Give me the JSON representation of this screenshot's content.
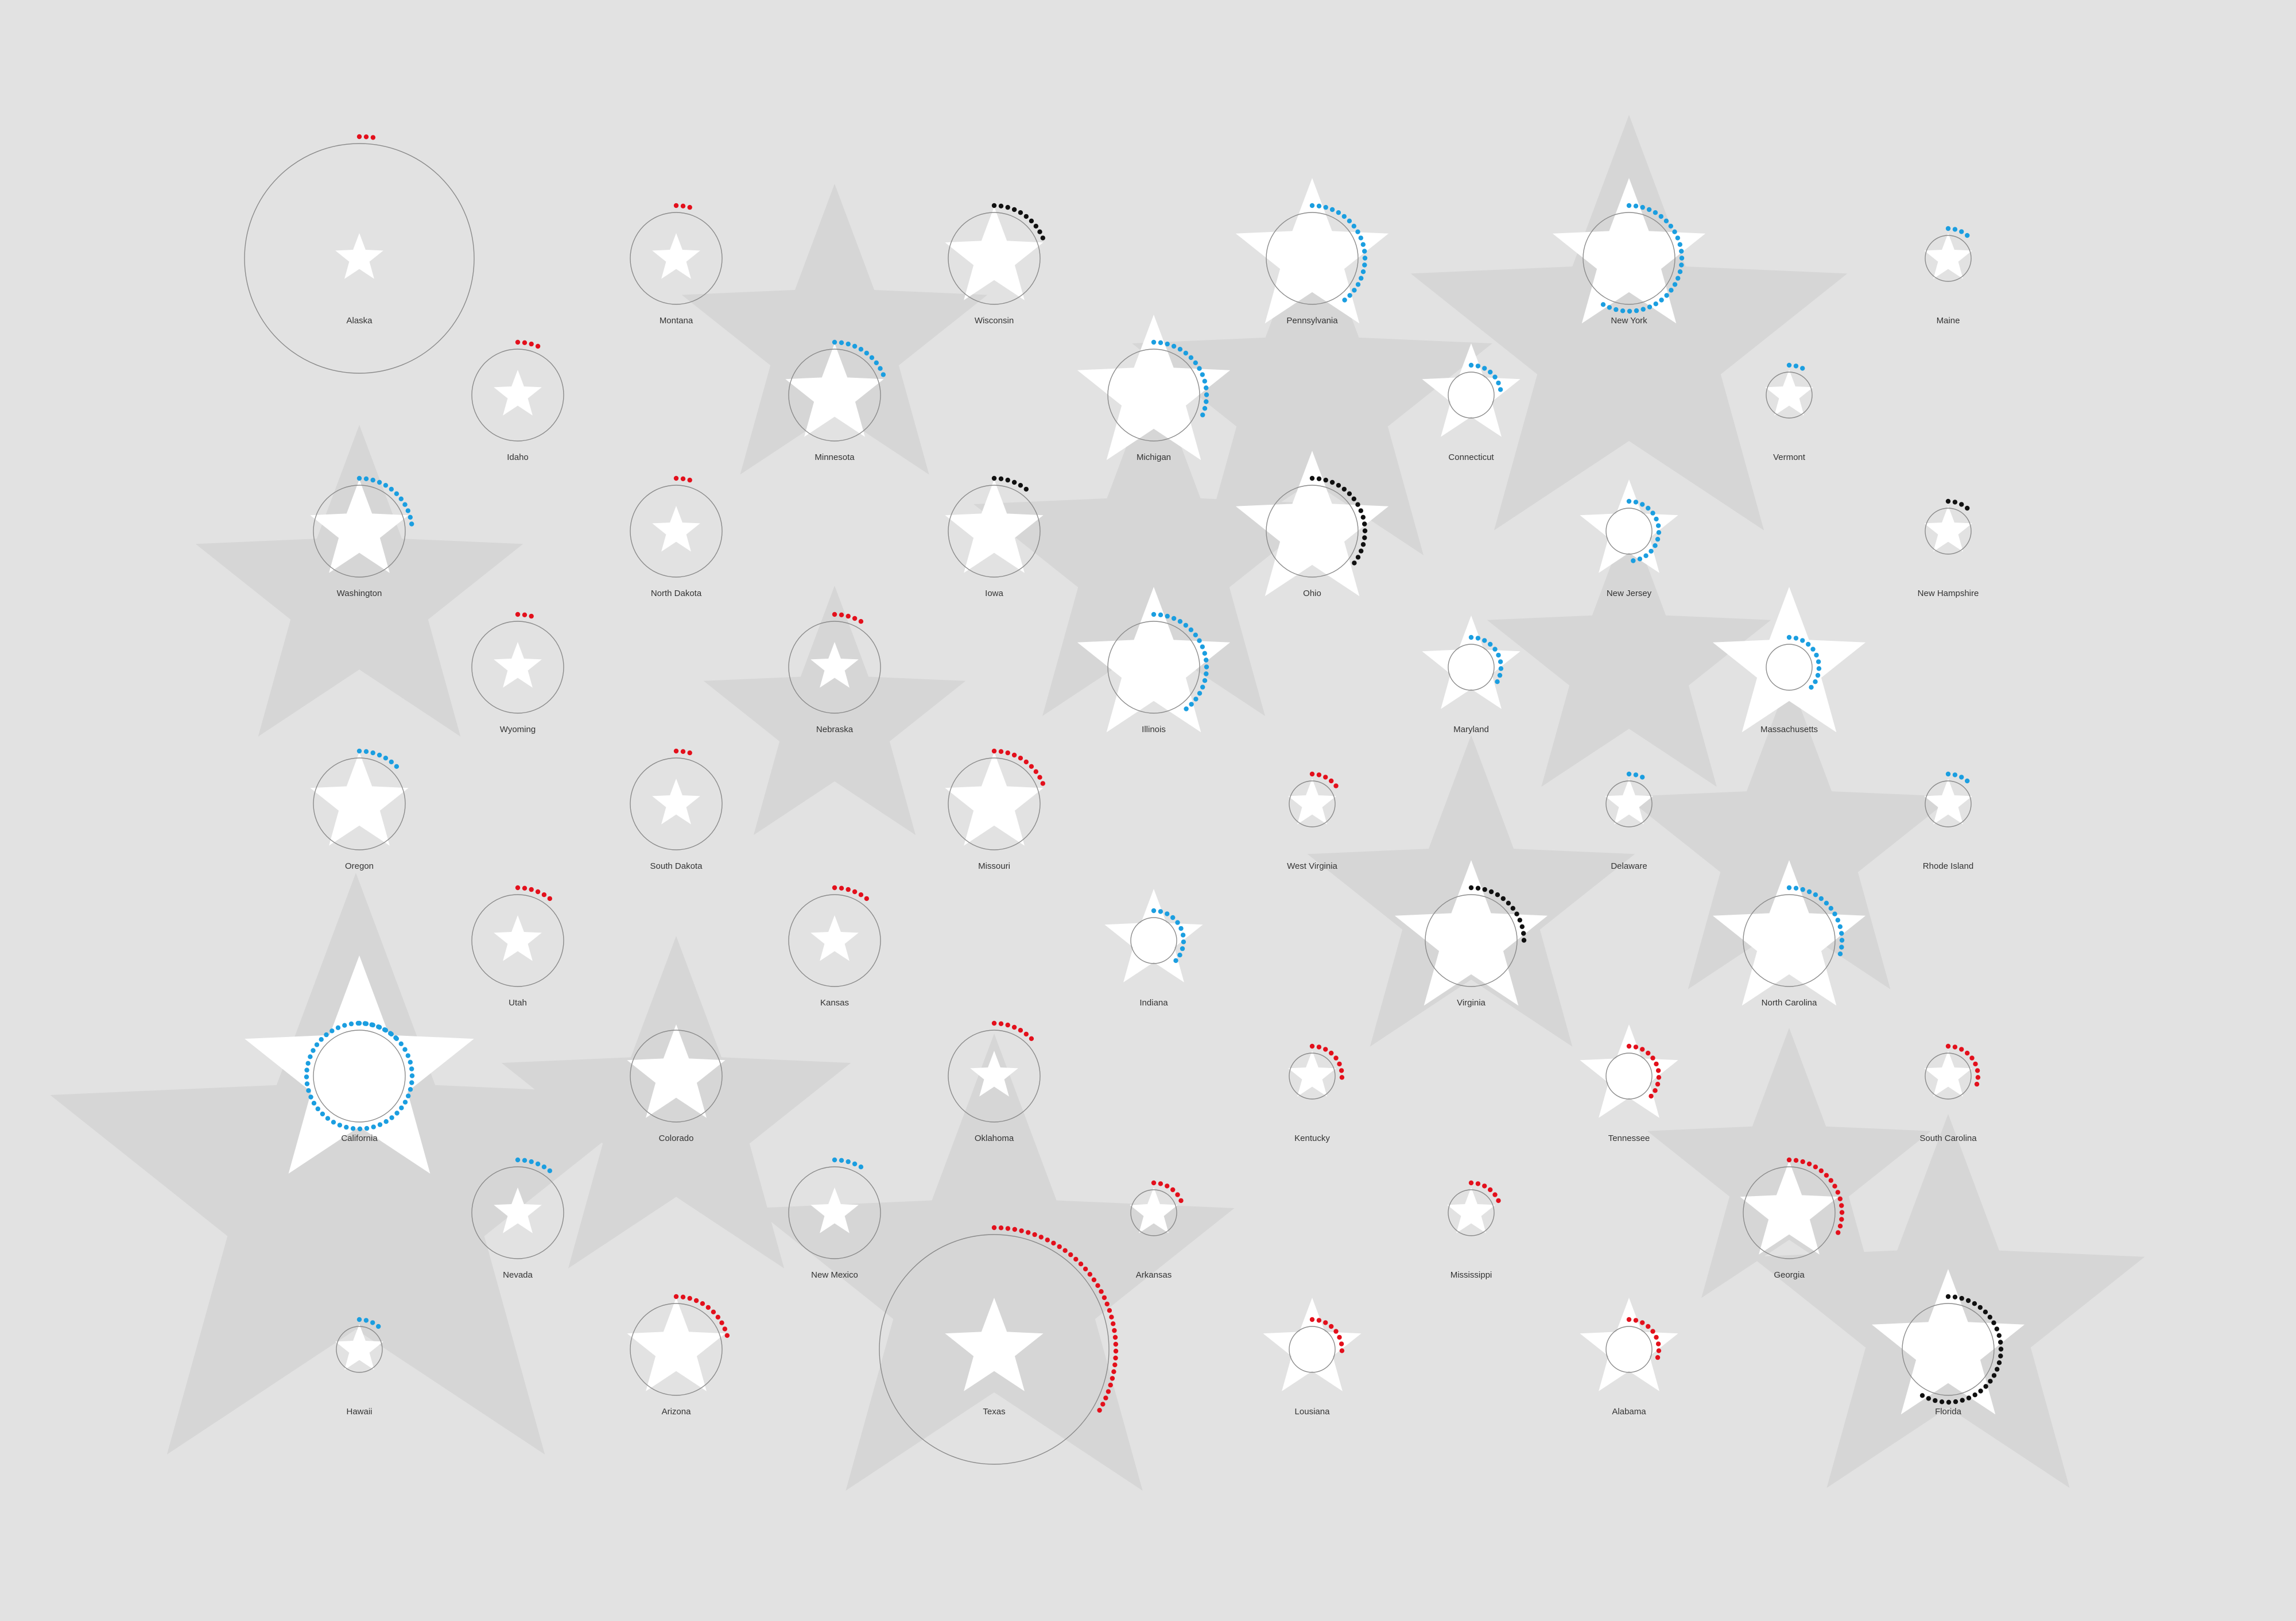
{
  "colors": {
    "background": "#e2e2e2",
    "shadow_star": "#d6d6d6",
    "star": "#ffffff",
    "ring": "#8a8a8a",
    "blue": "#1b9ee0",
    "red": "#e3101c",
    "black": "#111111"
  },
  "states": [
    {
      "name": "Alaska",
      "dots": 3,
      "color": "red",
      "ring": "large",
      "star": "small"
    },
    {
      "name": "Montana",
      "dots": 3,
      "color": "red",
      "ring": "medium",
      "star": "small"
    },
    {
      "name": "Wisconsin",
      "dots": 10,
      "color": "black",
      "ring": "medium",
      "star": "medium"
    },
    {
      "name": "Pennsylvania",
      "dots": 20,
      "color": "blue",
      "ring": "medium",
      "star": "large"
    },
    {
      "name": "New York",
      "dots": 29,
      "color": "blue",
      "ring": "medium",
      "star": "large"
    },
    {
      "name": "Maine",
      "dots": 4,
      "color": "blue",
      "ring": "small",
      "star": "small"
    },
    {
      "name": "Idaho",
      "dots": 4,
      "color": "red",
      "ring": "medium",
      "star": "small"
    },
    {
      "name": "Minnesota",
      "dots": 10,
      "color": "blue",
      "ring": "medium",
      "star": "medium"
    },
    {
      "name": "Michigan",
      "dots": 16,
      "color": "blue",
      "ring": "medium",
      "star": "large"
    },
    {
      "name": "Connecticut",
      "dots": 7,
      "color": "blue",
      "ring": "small",
      "star": "medium"
    },
    {
      "name": "Vermont",
      "dots": 3,
      "color": "blue",
      "ring": "small",
      "star": "small"
    },
    {
      "name": "Washington",
      "dots": 12,
      "color": "blue",
      "ring": "medium",
      "star": "medium"
    },
    {
      "name": "North Dakota",
      "dots": 3,
      "color": "red",
      "ring": "medium",
      "star": "small"
    },
    {
      "name": "Iowa",
      "dots": 6,
      "color": "black",
      "ring": "medium",
      "star": "medium"
    },
    {
      "name": "Ohio",
      "dots": 18,
      "color": "black",
      "ring": "medium",
      "star": "large"
    },
    {
      "name": "New Jersey",
      "dots": 14,
      "color": "blue",
      "ring": "small",
      "star": "medium"
    },
    {
      "name": "New Hampshire",
      "dots": 4,
      "color": "black",
      "ring": "small",
      "star": "small"
    },
    {
      "name": "Wyoming",
      "dots": 3,
      "color": "red",
      "ring": "medium",
      "star": "small"
    },
    {
      "name": "Nebraska",
      "dots": 5,
      "color": "red",
      "ring": "medium",
      "star": "small"
    },
    {
      "name": "Illinois",
      "dots": 20,
      "color": "blue",
      "ring": "medium",
      "star": "large"
    },
    {
      "name": "Maryland",
      "dots": 10,
      "color": "blue",
      "ring": "small",
      "star": "medium"
    },
    {
      "name": "Massachusetts",
      "dots": 11,
      "color": "blue",
      "ring": "small",
      "star": "large"
    },
    {
      "name": "Oregon",
      "dots": 7,
      "color": "blue",
      "ring": "medium",
      "star": "medium"
    },
    {
      "name": "South Dakota",
      "dots": 3,
      "color": "red",
      "ring": "medium",
      "star": "small"
    },
    {
      "name": "Missouri",
      "dots": 10,
      "color": "red",
      "ring": "medium",
      "star": "medium"
    },
    {
      "name": "West Virginia",
      "dots": 5,
      "color": "red",
      "ring": "small",
      "star": "small"
    },
    {
      "name": "Delaware",
      "dots": 3,
      "color": "blue",
      "ring": "small",
      "star": "small"
    },
    {
      "name": "Rhode Island",
      "dots": 4,
      "color": "blue",
      "ring": "small",
      "star": "small"
    },
    {
      "name": "Utah",
      "dots": 6,
      "color": "red",
      "ring": "medium",
      "star": "small"
    },
    {
      "name": "Kansas",
      "dots": 6,
      "color": "red",
      "ring": "medium",
      "star": "small"
    },
    {
      "name": "Indiana",
      "dots": 11,
      "color": "blue",
      "ring": "small",
      "star": "medium"
    },
    {
      "name": "Virginia",
      "dots": 13,
      "color": "black",
      "ring": "medium",
      "star": "large"
    },
    {
      "name": "North Carolina",
      "dots": 15,
      "color": "blue",
      "ring": "medium",
      "star": "large"
    },
    {
      "name": "California",
      "dots": 55,
      "color": "blue",
      "ring": "medium",
      "star": "xlarge"
    },
    {
      "name": "Colorado",
      "dots": 0,
      "color": "blue",
      "ring": "medium",
      "star": "medium"
    },
    {
      "name": "Oklahoma",
      "dots": 7,
      "color": "red",
      "ring": "medium",
      "star": "small"
    },
    {
      "name": "Kentucky",
      "dots": 8,
      "color": "red",
      "ring": "small",
      "star": "small"
    },
    {
      "name": "Tennessee",
      "dots": 11,
      "color": "red",
      "ring": "small",
      "star": "medium"
    },
    {
      "name": "South Carolina",
      "dots": 9,
      "color": "red",
      "ring": "small",
      "star": "small"
    },
    {
      "name": "Nevada",
      "dots": 6,
      "color": "blue",
      "ring": "medium",
      "star": "small"
    },
    {
      "name": "New Mexico",
      "dots": 5,
      "color": "blue",
      "ring": "medium",
      "star": "small"
    },
    {
      "name": "Arkansas",
      "dots": 6,
      "color": "red",
      "ring": "small",
      "star": "small"
    },
    {
      "name": "Mississippi",
      "dots": 6,
      "color": "red",
      "ring": "small",
      "star": "small"
    },
    {
      "name": "Georgia",
      "dots": 16,
      "color": "red",
      "ring": "medium",
      "star": "medium"
    },
    {
      "name": "Hawaii",
      "dots": 4,
      "color": "blue",
      "ring": "small",
      "star": "small"
    },
    {
      "name": "Arizona",
      "dots": 11,
      "color": "red",
      "ring": "medium",
      "star": "medium"
    },
    {
      "name": "Texas",
      "dots": 38,
      "color": "red",
      "ring": "large",
      "star": "medium"
    },
    {
      "name": "Lousiana",
      "dots": 8,
      "color": "red",
      "ring": "small",
      "star": "medium"
    },
    {
      "name": "Alabama",
      "dots": 9,
      "color": "red",
      "ring": "small",
      "star": "medium"
    },
    {
      "name": "Florida",
      "dots": 29,
      "color": "black",
      "ring": "medium",
      "star": "large"
    }
  ]
}
